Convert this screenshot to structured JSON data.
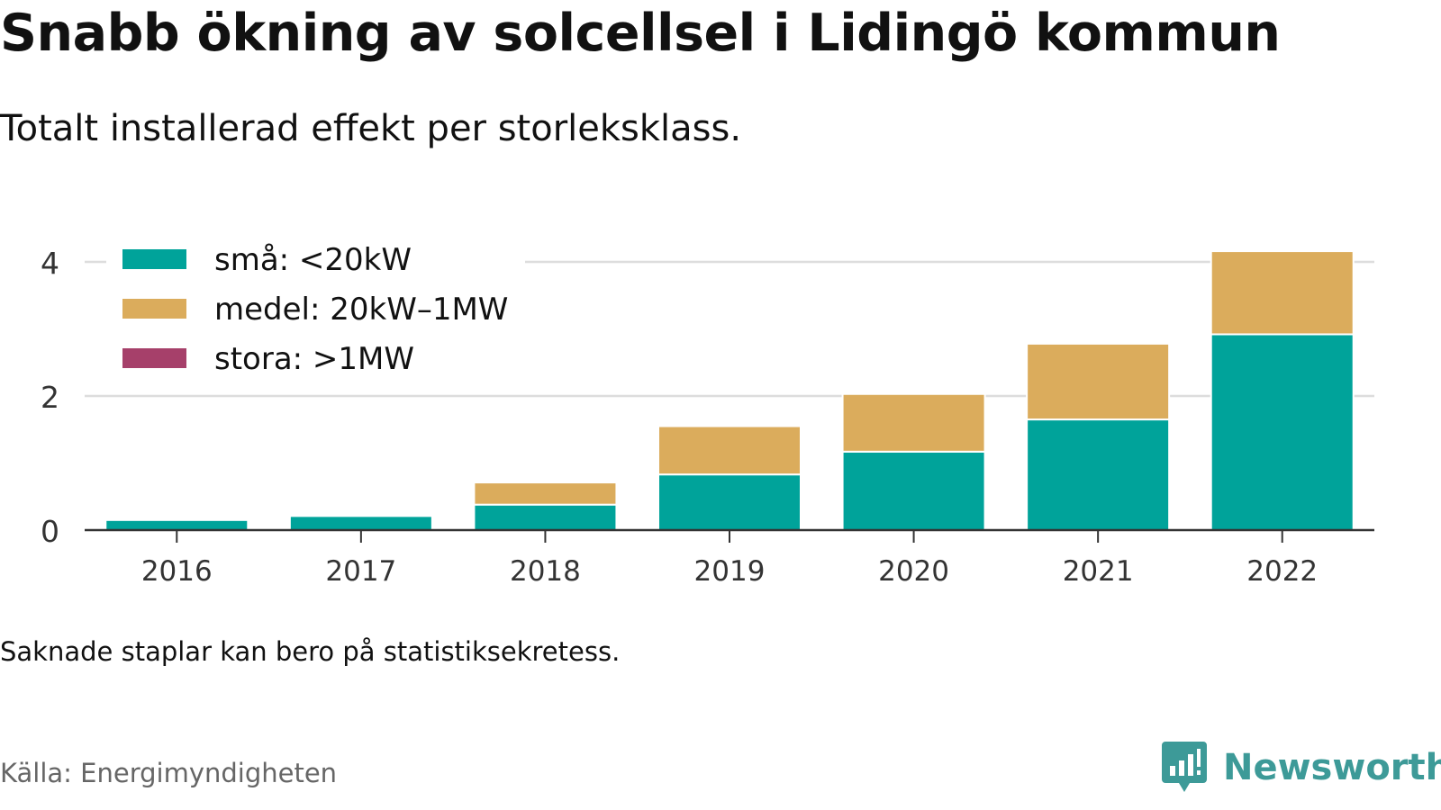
{
  "title": "Snabb ökning av solcellsel i Lidingö kommun",
  "subtitle": "Totalt installerad effekt per storleksklass.",
  "note": "Saknade staplar kan bero på statistiksekretess.",
  "source": "Källa: Energimyndigheten",
  "brand": {
    "name": "Newsworthy",
    "icon": "bar-chart-speech-bubble-icon",
    "color": "#3d9a98"
  },
  "chart_data": {
    "type": "bar",
    "stacked": true,
    "categories": [
      "2016",
      "2017",
      "2018",
      "2019",
      "2020",
      "2021",
      "2022"
    ],
    "series": [
      {
        "name": "små: <20kW",
        "color": "#00a39a",
        "values": [
          0.15,
          0.21,
          0.38,
          0.83,
          1.17,
          1.65,
          2.92
        ]
      },
      {
        "name": "medel: 20kW–1MW",
        "color": "#dbac5c",
        "values": [
          0,
          0,
          0.33,
          0.72,
          0.86,
          1.13,
          1.24
        ]
      },
      {
        "name": "stora: >1MW",
        "color": "#a6406a",
        "values": [
          0,
          0,
          0,
          0,
          0,
          0,
          0
        ]
      }
    ],
    "ylim": [
      0,
      4.4
    ],
    "yticks": [
      0,
      2,
      4
    ],
    "ytick_labels": [
      "0",
      "2",
      "4"
    ],
    "grid": true,
    "legend": "top-left"
  }
}
